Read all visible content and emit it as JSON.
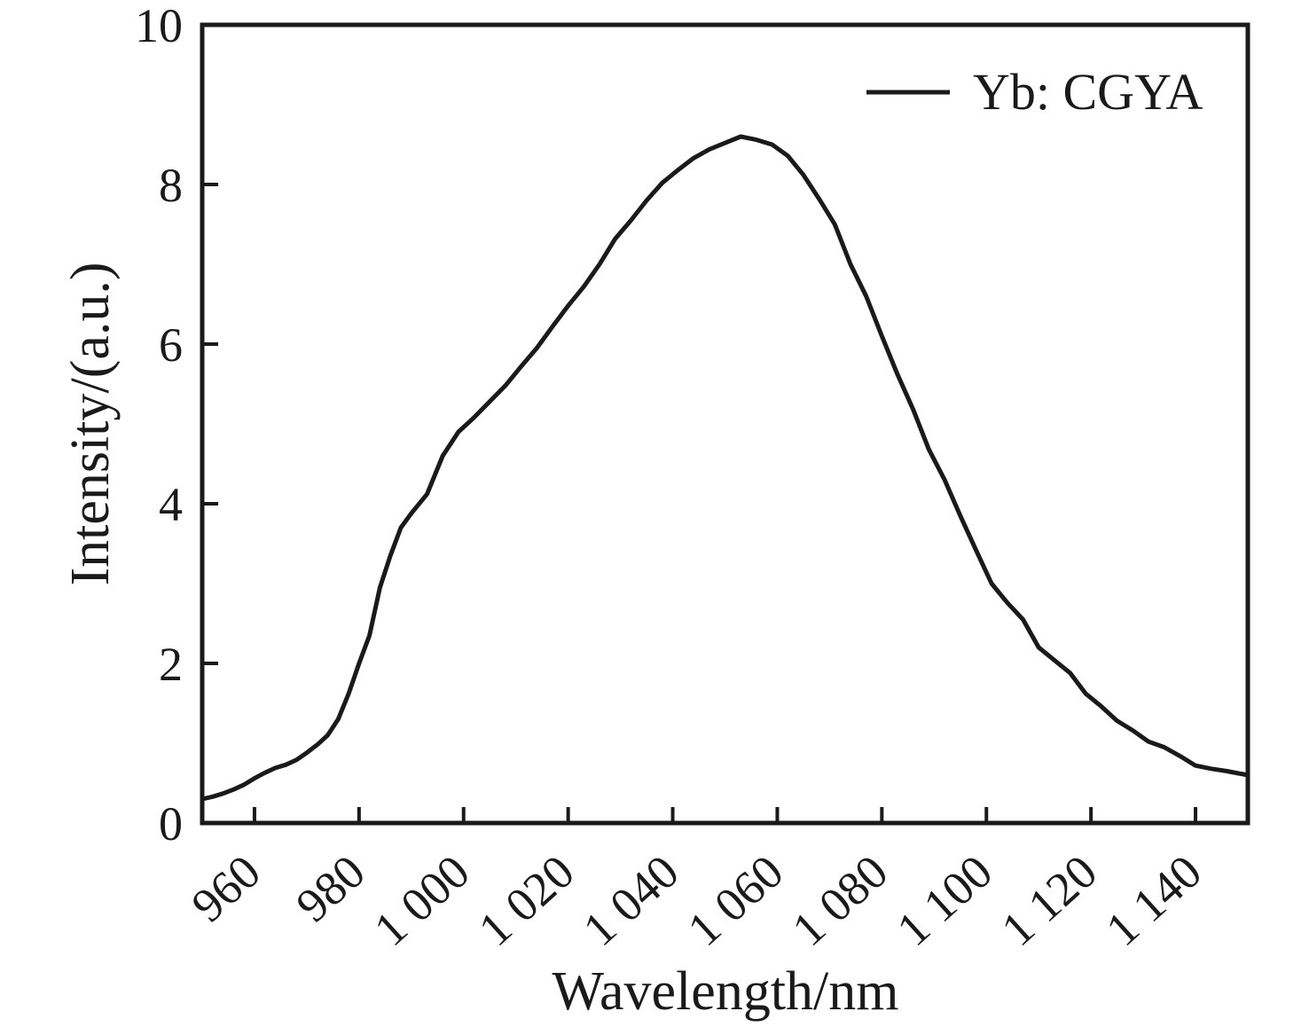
{
  "figure": {
    "background": "#ffffff",
    "ink_color": "#1a1a1a"
  },
  "chart_data": {
    "type": "line",
    "title": "",
    "xlabel": "Wavelength/nm",
    "ylabel": "Intensity/(a.u.)",
    "xlim": [
      950,
      1150
    ],
    "ylim": [
      0,
      10
    ],
    "grid": false,
    "x_ticks": [
      {
        "value": 960,
        "label": "960"
      },
      {
        "value": 980,
        "label": "980"
      },
      {
        "value": 1000,
        "label": "1 000"
      },
      {
        "value": 1020,
        "label": "1 020"
      },
      {
        "value": 1040,
        "label": "1 040"
      },
      {
        "value": 1060,
        "label": "1 060"
      },
      {
        "value": 1080,
        "label": "1 080"
      },
      {
        "value": 1100,
        "label": "1 100"
      },
      {
        "value": 1120,
        "label": "1 120"
      },
      {
        "value": 1140,
        "label": "1 140"
      }
    ],
    "y_ticks": [
      {
        "value": 0,
        "label": "0"
      },
      {
        "value": 2,
        "label": "2"
      },
      {
        "value": 4,
        "label": "4"
      },
      {
        "value": 6,
        "label": "6"
      },
      {
        "value": 8,
        "label": "8"
      },
      {
        "value": 10,
        "label": "10"
      }
    ],
    "legend": {
      "position": "top-right",
      "entries": [
        {
          "label": "Yb: CGYA",
          "color": "#1a1a1a",
          "style": "solid-line"
        }
      ]
    },
    "series": [
      {
        "name": "Yb: CGYA",
        "color": "#1a1a1a",
        "points": [
          [
            950,
            0.3
          ],
          [
            952,
            0.33
          ],
          [
            954,
            0.37
          ],
          [
            956,
            0.42
          ],
          [
            958,
            0.48
          ],
          [
            960,
            0.56
          ],
          [
            962,
            0.63
          ],
          [
            964,
            0.69
          ],
          [
            966,
            0.73
          ],
          [
            968,
            0.79
          ],
          [
            970,
            0.88
          ],
          [
            972,
            0.98
          ],
          [
            974,
            1.1
          ],
          [
            976,
            1.3
          ],
          [
            978,
            1.62
          ],
          [
            980,
            2.0
          ],
          [
            982,
            2.35
          ],
          [
            984,
            2.95
          ],
          [
            986,
            3.35
          ],
          [
            988,
            3.7
          ],
          [
            990,
            3.88
          ],
          [
            993,
            4.12
          ],
          [
            996,
            4.6
          ],
          [
            999,
            4.9
          ],
          [
            1002,
            5.08
          ],
          [
            1005,
            5.28
          ],
          [
            1008,
            5.48
          ],
          [
            1011,
            5.72
          ],
          [
            1014,
            5.95
          ],
          [
            1017,
            6.22
          ],
          [
            1020,
            6.48
          ],
          [
            1023,
            6.72
          ],
          [
            1026,
            7.0
          ],
          [
            1029,
            7.32
          ],
          [
            1032,
            7.55
          ],
          [
            1035,
            7.8
          ],
          [
            1038,
            8.02
          ],
          [
            1041,
            8.18
          ],
          [
            1044,
            8.33
          ],
          [
            1047,
            8.44
          ],
          [
            1050,
            8.52
          ],
          [
            1053,
            8.6
          ],
          [
            1056,
            8.56
          ],
          [
            1059,
            8.5
          ],
          [
            1062,
            8.36
          ],
          [
            1065,
            8.12
          ],
          [
            1068,
            7.82
          ],
          [
            1071,
            7.5
          ],
          [
            1074,
            7.0
          ],
          [
            1077,
            6.6
          ],
          [
            1080,
            6.1
          ],
          [
            1083,
            5.62
          ],
          [
            1086,
            5.18
          ],
          [
            1089,
            4.68
          ],
          [
            1092,
            4.3
          ],
          [
            1095,
            3.85
          ],
          [
            1098,
            3.42
          ],
          [
            1101,
            3.0
          ],
          [
            1104,
            2.76
          ],
          [
            1107,
            2.55
          ],
          [
            1110,
            2.2
          ],
          [
            1113,
            2.04
          ],
          [
            1116,
            1.88
          ],
          [
            1119,
            1.62
          ],
          [
            1122,
            1.46
          ],
          [
            1125,
            1.28
          ],
          [
            1128,
            1.16
          ],
          [
            1131,
            1.02
          ],
          [
            1134,
            0.95
          ],
          [
            1137,
            0.84
          ],
          [
            1140,
            0.72
          ],
          [
            1143,
            0.68
          ],
          [
            1146,
            0.65
          ],
          [
            1150,
            0.6
          ]
        ]
      }
    ]
  }
}
